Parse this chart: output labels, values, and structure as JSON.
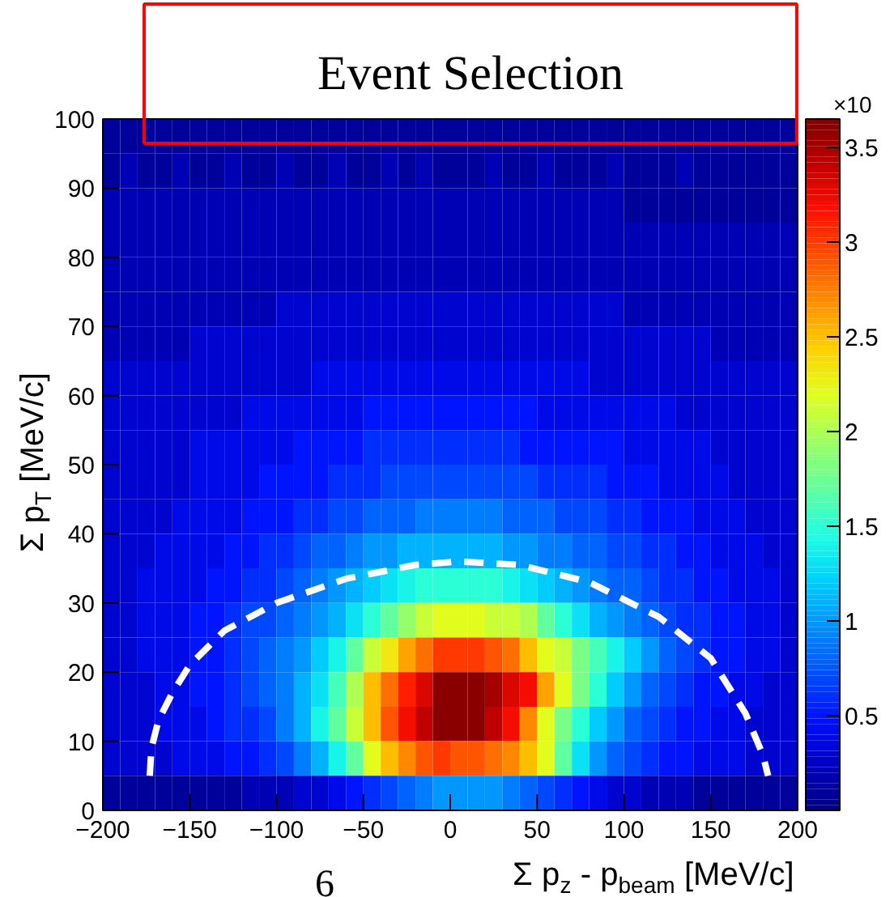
{
  "chart_data": {
    "type": "heatmap",
    "title": "Event Selection",
    "xlabel": "Σ p$_{z}$ - p$_{beam}$ [MeV/c]",
    "ylabel": "Σ p$_{T}$ [MeV/c]",
    "clabel": "×10",
    "annotations": [
      "6"
    ],
    "xlim": [
      -200,
      200
    ],
    "xticks": [
      -200,
      -150,
      -100,
      -50,
      0,
      50,
      100,
      150,
      200
    ],
    "ylim": [
      0,
      100
    ],
    "yticks": [
      0,
      10,
      20,
      30,
      40,
      50,
      60,
      70,
      80,
      90,
      100
    ],
    "clim": [
      0,
      3.65
    ],
    "cticks": [
      0.5,
      1,
      1.5,
      2,
      2.5,
      3,
      3.5
    ],
    "x": [
      -195,
      -185,
      -175,
      -165,
      -155,
      -145,
      -135,
      -125,
      -115,
      -105,
      -95,
      -85,
      -75,
      -65,
      -55,
      -45,
      -35,
      -25,
      -15,
      -5,
      5,
      15,
      25,
      35,
      45,
      55,
      65,
      75,
      85,
      95,
      105,
      115,
      125,
      135,
      145,
      155,
      165,
      175,
      185,
      195
    ],
    "cells": [
      [
        0.1,
        0.1,
        0.1,
        0.1,
        0.1,
        0.1,
        0.1,
        0.1,
        0.1,
        0.1,
        0.1,
        0.1,
        0.1,
        0.1,
        0.1,
        0.1,
        0.1,
        0.1,
        0.1,
        0.1,
        0.1,
        0.1,
        0.1,
        0.1,
        0.1,
        0.1,
        0.1,
        0.1,
        0.1,
        0.1,
        0.1,
        0.1,
        0.1,
        0.1,
        0.1,
        0.1,
        0.1,
        0.1,
        0.1,
        0.1
      ],
      [
        0.1,
        0.2,
        0.1,
        0.1,
        0.2,
        0.1,
        0.1,
        0.2,
        0.1,
        0.1,
        0.2,
        0.1,
        0.1,
        0.2,
        0.1,
        0.1,
        0.2,
        0.1,
        0.2,
        0.1,
        0.1,
        0.1,
        0.2,
        0.1,
        0.1,
        0.2,
        0.1,
        0.1,
        0.1,
        0.2,
        0.1,
        0.1,
        0.1,
        0.2,
        0.1,
        0.1,
        0.1,
        0.1,
        0.1,
        0.1
      ],
      [
        0.2,
        0.2,
        0.2,
        0.2,
        0.2,
        0.2,
        0.2,
        0.2,
        0.2,
        0.2,
        0.2,
        0.2,
        0.2,
        0.2,
        0.2,
        0.2,
        0.2,
        0.2,
        0.2,
        0.2,
        0.2,
        0.2,
        0.2,
        0.2,
        0.2,
        0.2,
        0.2,
        0.2,
        0.2,
        0.2,
        0.1,
        0.1,
        0.1,
        0.1,
        0.1,
        0.1,
        0.1,
        0.1,
        0.1,
        0.1
      ],
      [
        0.2,
        0.2,
        0.2,
        0.2,
        0.2,
        0.2,
        0.2,
        0.2,
        0.2,
        0.2,
        0.2,
        0.2,
        0.2,
        0.2,
        0.2,
        0.2,
        0.2,
        0.2,
        0.2,
        0.2,
        0.2,
        0.2,
        0.2,
        0.2,
        0.2,
        0.2,
        0.2,
        0.2,
        0.2,
        0.2,
        0.2,
        0.2,
        0.2,
        0.2,
        0.2,
        0.2,
        0.2,
        0.2,
        0.2,
        0.2
      ],
      [
        0.2,
        0.2,
        0.2,
        0.2,
        0.2,
        0.2,
        0.2,
        0.2,
        0.2,
        0.2,
        0.2,
        0.2,
        0.2,
        0.2,
        0.2,
        0.2,
        0.2,
        0.2,
        0.2,
        0.2,
        0.2,
        0.2,
        0.2,
        0.2,
        0.2,
        0.2,
        0.2,
        0.2,
        0.2,
        0.2,
        0.2,
        0.2,
        0.2,
        0.2,
        0.2,
        0.2,
        0.2,
        0.2,
        0.2,
        0.2
      ],
      [
        0.2,
        0.2,
        0.2,
        0.2,
        0.2,
        0.2,
        0.2,
        0.2,
        0.2,
        0.2,
        0.3,
        0.3,
        0.3,
        0.3,
        0.3,
        0.3,
        0.3,
        0.3,
        0.3,
        0.3,
        0.3,
        0.3,
        0.3,
        0.3,
        0.3,
        0.3,
        0.3,
        0.3,
        0.3,
        0.3,
        0.2,
        0.2,
        0.2,
        0.2,
        0.2,
        0.2,
        0.2,
        0.2,
        0.2,
        0.2
      ],
      [
        0.2,
        0.2,
        0.2,
        0.2,
        0.2,
        0.3,
        0.3,
        0.3,
        0.3,
        0.3,
        0.3,
        0.3,
        0.3,
        0.3,
        0.3,
        0.3,
        0.3,
        0.3,
        0.3,
        0.3,
        0.3,
        0.3,
        0.3,
        0.3,
        0.3,
        0.3,
        0.3,
        0.3,
        0.3,
        0.3,
        0.3,
        0.3,
        0.3,
        0.3,
        0.3,
        0.2,
        0.2,
        0.2,
        0.2,
        0.2
      ],
      [
        0.3,
        0.3,
        0.3,
        0.3,
        0.3,
        0.3,
        0.3,
        0.3,
        0.3,
        0.3,
        0.3,
        0.3,
        0.4,
        0.4,
        0.4,
        0.4,
        0.4,
        0.4,
        0.4,
        0.4,
        0.4,
        0.4,
        0.4,
        0.4,
        0.4,
        0.4,
        0.4,
        0.4,
        0.3,
        0.3,
        0.3,
        0.3,
        0.3,
        0.3,
        0.3,
        0.3,
        0.3,
        0.3,
        0.3,
        0.3
      ],
      [
        0.3,
        0.3,
        0.3,
        0.3,
        0.3,
        0.3,
        0.3,
        0.3,
        0.4,
        0.4,
        0.4,
        0.4,
        0.4,
        0.4,
        0.4,
        0.5,
        0.5,
        0.5,
        0.5,
        0.5,
        0.5,
        0.5,
        0.5,
        0.5,
        0.5,
        0.4,
        0.4,
        0.4,
        0.4,
        0.4,
        0.4,
        0.4,
        0.4,
        0.3,
        0.3,
        0.3,
        0.3,
        0.3,
        0.3,
        0.3
      ],
      [
        0.3,
        0.3,
        0.3,
        0.3,
        0.3,
        0.4,
        0.4,
        0.4,
        0.4,
        0.4,
        0.4,
        0.5,
        0.5,
        0.5,
        0.5,
        0.6,
        0.6,
        0.6,
        0.6,
        0.6,
        0.6,
        0.6,
        0.6,
        0.6,
        0.5,
        0.5,
        0.5,
        0.5,
        0.5,
        0.5,
        0.4,
        0.4,
        0.4,
        0.4,
        0.4,
        0.3,
        0.3,
        0.3,
        0.3,
        0.3
      ],
      [
        0.3,
        0.3,
        0.3,
        0.3,
        0.3,
        0.4,
        0.4,
        0.4,
        0.4,
        0.5,
        0.5,
        0.5,
        0.5,
        0.6,
        0.6,
        0.6,
        0.7,
        0.7,
        0.7,
        0.7,
        0.7,
        0.7,
        0.7,
        0.7,
        0.7,
        0.6,
        0.6,
        0.6,
        0.6,
        0.5,
        0.5,
        0.5,
        0.4,
        0.4,
        0.4,
        0.4,
        0.3,
        0.3,
        0.3,
        0.3
      ],
      [
        0.3,
        0.3,
        0.3,
        0.3,
        0.4,
        0.4,
        0.4,
        0.4,
        0.5,
        0.5,
        0.5,
        0.6,
        0.6,
        0.7,
        0.7,
        0.8,
        0.8,
        0.8,
        0.9,
        0.9,
        0.9,
        0.9,
        0.9,
        0.8,
        0.8,
        0.8,
        0.7,
        0.7,
        0.7,
        0.6,
        0.6,
        0.5,
        0.5,
        0.5,
        0.4,
        0.4,
        0.4,
        0.3,
        0.3,
        0.3
      ],
      [
        0.3,
        0.3,
        0.3,
        0.4,
        0.4,
        0.4,
        0.4,
        0.5,
        0.5,
        0.6,
        0.6,
        0.7,
        0.8,
        0.8,
        0.9,
        1.0,
        1.0,
        1.1,
        1.1,
        1.1,
        1.1,
        1.1,
        1.1,
        1.0,
        1.0,
        0.9,
        0.9,
        0.8,
        0.8,
        0.7,
        0.7,
        0.6,
        0.6,
        0.5,
        0.5,
        0.4,
        0.4,
        0.4,
        0.3,
        0.3
      ],
      [
        0.3,
        0.3,
        0.4,
        0.4,
        0.4,
        0.4,
        0.5,
        0.5,
        0.6,
        0.6,
        0.7,
        0.8,
        0.9,
        1.0,
        1.1,
        1.2,
        1.3,
        1.4,
        1.5,
        1.5,
        1.5,
        1.5,
        1.5,
        1.4,
        1.3,
        1.2,
        1.1,
        1.0,
        0.9,
        0.8,
        0.8,
        0.7,
        0.6,
        0.6,
        0.5,
        0.5,
        0.4,
        0.4,
        0.4,
        0.3
      ],
      [
        0.3,
        0.3,
        0.4,
        0.4,
        0.4,
        0.5,
        0.5,
        0.6,
        0.7,
        0.7,
        0.8,
        0.9,
        1.0,
        1.1,
        1.3,
        1.5,
        1.7,
        1.9,
        2.1,
        2.2,
        2.2,
        2.2,
        2.1,
        2.1,
        2.0,
        1.7,
        1.5,
        1.3,
        1.1,
        1.0,
        0.9,
        0.8,
        0.7,
        0.6,
        0.6,
        0.5,
        0.5,
        0.4,
        0.4,
        0.3
      ],
      [
        0.3,
        0.3,
        0.4,
        0.4,
        0.4,
        0.5,
        0.5,
        0.6,
        0.7,
        0.8,
        0.9,
        1.0,
        1.2,
        1.4,
        1.7,
        2.1,
        2.3,
        2.6,
        2.8,
        3.0,
        3.0,
        3.0,
        2.9,
        2.8,
        2.5,
        2.2,
        2.1,
        1.8,
        1.6,
        1.4,
        1.2,
        1.0,
        0.8,
        0.7,
        0.6,
        0.5,
        0.5,
        0.4,
        0.4,
        0.3
      ],
      [
        0.3,
        0.3,
        0.3,
        0.4,
        0.4,
        0.5,
        0.5,
        0.6,
        0.7,
        0.8,
        0.9,
        1.1,
        1.3,
        1.6,
        2.0,
        2.5,
        2.8,
        3.1,
        3.3,
        3.6,
        3.6,
        3.6,
        3.5,
        3.3,
        3.2,
        2.6,
        2.2,
        1.8,
        1.5,
        1.2,
        1.0,
        0.8,
        0.7,
        0.6,
        0.5,
        0.5,
        0.4,
        0.4,
        0.3,
        0.3
      ],
      [
        0.3,
        0.3,
        0.3,
        0.4,
        0.4,
        0.4,
        0.5,
        0.6,
        0.6,
        0.7,
        0.9,
        1.1,
        1.4,
        1.7,
        2.1,
        2.5,
        2.9,
        3.2,
        3.4,
        3.6,
        3.6,
        3.6,
        3.4,
        3.2,
        2.7,
        2.2,
        1.8,
        1.5,
        1.2,
        1.0,
        0.8,
        0.7,
        0.6,
        0.5,
        0.5,
        0.4,
        0.4,
        0.3,
        0.3,
        0.3
      ],
      [
        0.3,
        0.3,
        0.3,
        0.3,
        0.4,
        0.4,
        0.4,
        0.5,
        0.5,
        0.6,
        0.7,
        0.9,
        1.1,
        1.4,
        1.7,
        2.2,
        2.5,
        2.7,
        2.9,
        3.0,
        2.9,
        2.9,
        2.8,
        2.7,
        2.5,
        2.2,
        1.7,
        1.3,
        1.0,
        0.8,
        0.7,
        0.6,
        0.5,
        0.5,
        0.4,
        0.4,
        0.4,
        0.3,
        0.3,
        0.3
      ],
      [
        0.1,
        0.1,
        0.1,
        0.1,
        0.1,
        0.1,
        0.1,
        0.1,
        0.2,
        0.2,
        0.2,
        0.3,
        0.3,
        0.4,
        0.5,
        0.6,
        0.7,
        0.8,
        0.9,
        1.0,
        1.0,
        1.0,
        1.0,
        0.9,
        0.8,
        0.7,
        0.6,
        0.5,
        0.4,
        0.3,
        0.3,
        0.2,
        0.2,
        0.2,
        0.1,
        0.1,
        0.1,
        0.1,
        0.1,
        0.1
      ]
    ],
    "series": [
      {
        "type": "line",
        "color": "#ffffff",
        "line_style": "dashed",
        "x": [
          -173,
          -172,
          -168,
          -160,
          -150,
          -130,
          -100,
          -60,
          -20,
          5,
          40,
          80,
          120,
          150,
          170,
          180,
          183
        ],
        "values": [
          5,
          9,
          13,
          17,
          21,
          26,
          30,
          33.5,
          35.5,
          36,
          35.5,
          33,
          28,
          22,
          14,
          8,
          5
        ]
      }
    ]
  }
}
